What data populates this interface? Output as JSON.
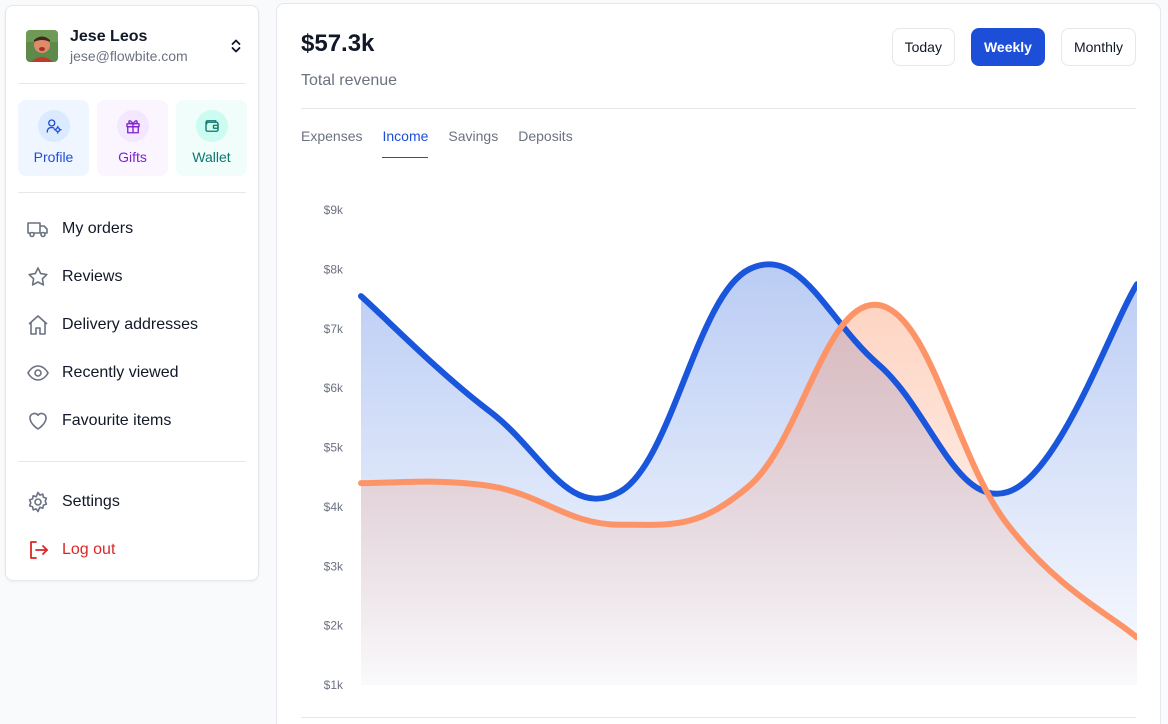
{
  "user": {
    "name": "Jese Leos",
    "email": "jese@flowbite.com"
  },
  "quick_actions": [
    {
      "label": "Profile",
      "icon": "user-gear-icon"
    },
    {
      "label": "Gifts",
      "icon": "gift-icon"
    },
    {
      "label": "Wallet",
      "icon": "wallet-icon"
    }
  ],
  "menu": [
    {
      "label": "My orders",
      "icon": "truck-icon"
    },
    {
      "label": "Reviews",
      "icon": "star-icon"
    },
    {
      "label": "Delivery addresses",
      "icon": "home-icon"
    },
    {
      "label": "Recently viewed",
      "icon": "eye-icon"
    },
    {
      "label": "Favourite items",
      "icon": "heart-icon"
    }
  ],
  "menu_bottom": [
    {
      "label": "Settings",
      "icon": "gear-icon"
    },
    {
      "label": "Log out",
      "icon": "logout-icon"
    }
  ],
  "summary": {
    "total": "$57.3k",
    "total_label": "Total revenue"
  },
  "periods": [
    "Today",
    "Weekly",
    "Monthly"
  ],
  "active_period": "Weekly",
  "tabs": [
    "Expenses",
    "Income",
    "Savings",
    "Deposits"
  ],
  "active_tab": "Income",
  "colors": {
    "accent": "#1d4ed8",
    "series_blue": "#1a56db",
    "series_orange": "#fd9468",
    "logout": "#dc2626"
  },
  "chart_data": {
    "type": "area",
    "y_ticks": [
      "$1k",
      "$2k",
      "$3k",
      "$4k",
      "$5k",
      "$6k",
      "$7k",
      "$8k",
      "$9k"
    ],
    "ylim": [
      1000,
      9000
    ],
    "series": [
      {
        "values": [
          7550,
          5600,
          4250,
          8000,
          6400,
          4250,
          7750
        ]
      },
      {
        "values": [
          4400,
          4350,
          3700,
          4350,
          7400,
          3700,
          1800
        ]
      }
    ]
  }
}
